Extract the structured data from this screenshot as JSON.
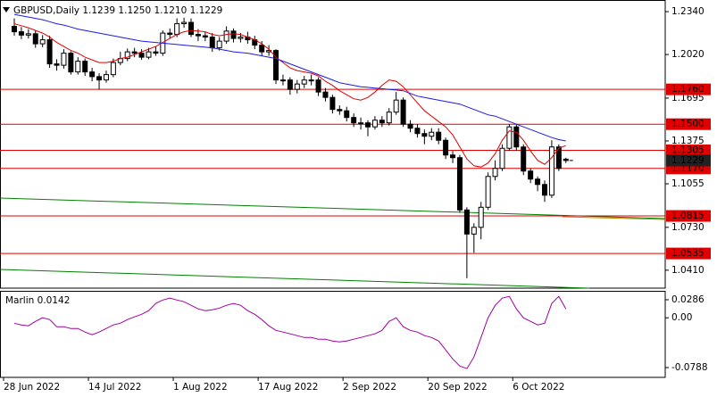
{
  "chart_data": [
    {
      "type": "candlestick",
      "title": "GBPUSD,Daily  1.1239 1.1250 1.1210 1.1229",
      "categories": [
        "28 Jun 2022",
        null,
        null,
        null,
        null,
        null,
        null,
        null,
        null,
        null,
        null,
        null,
        "14 Jul 2022",
        null,
        null,
        null,
        null,
        null,
        null,
        null,
        null,
        null,
        null,
        null,
        "1 Aug 2022",
        null,
        null,
        null,
        null,
        null,
        null,
        null,
        null,
        null,
        null,
        null,
        "17 Aug 2022",
        null,
        null,
        null,
        null,
        null,
        null,
        null,
        null,
        null,
        null,
        null,
        "2 Sep 2022",
        null,
        null,
        null,
        null,
        null,
        null,
        null,
        null,
        null,
        null,
        null,
        "20 Sep 2022",
        null,
        null,
        null,
        null,
        null,
        null,
        null,
        null,
        null,
        null,
        null,
        "6 Oct 2022",
        null,
        null,
        null,
        null,
        null,
        null
      ],
      "open": [
        1.223,
        1.219,
        1.2165,
        1.2175,
        1.21,
        1.213,
        1.195,
        1.194,
        1.203,
        1.189,
        1.197,
        1.189,
        1.1855,
        1.183,
        1.187,
        1.196,
        1.199,
        1.204,
        1.203,
        1.2,
        1.204,
        1.203,
        1.218,
        1.217,
        1.225,
        1.226,
        1.217,
        1.216,
        1.215,
        1.207,
        1.212,
        1.2195,
        1.214,
        1.215,
        1.213,
        1.209,
        1.204,
        1.205,
        1.183,
        1.183,
        1.176,
        1.18,
        1.183,
        1.183,
        1.174,
        1.17,
        1.161,
        1.16,
        1.155,
        1.151,
        1.151,
        1.148,
        1.153,
        1.151,
        1.159,
        1.168,
        1.15,
        1.147,
        1.143,
        1.141,
        1.144,
        1.138,
        1.127,
        1.125,
        1.086,
        1.068,
        1.073,
        1.088,
        1.111,
        1.117,
        1.132,
        1.148,
        1.133,
        1.115,
        1.109,
        1.105,
        1.097,
        1.133,
        1.1239
      ],
      "high": [
        1.229,
        1.2225,
        1.221,
        1.22,
        1.2165,
        1.216,
        1.1985,
        1.206,
        1.2045,
        1.2,
        1.199,
        1.192,
        1.188,
        1.19,
        1.199,
        1.204,
        1.2065,
        1.207,
        1.206,
        1.207,
        1.208,
        1.22,
        1.2215,
        1.229,
        1.2295,
        1.229,
        1.221,
        1.219,
        1.218,
        1.215,
        1.223,
        1.2215,
        1.218,
        1.219,
        1.216,
        1.212,
        1.209,
        1.206,
        1.187,
        1.185,
        1.183,
        1.186,
        1.187,
        1.185,
        1.177,
        1.172,
        1.164,
        1.163,
        1.158,
        1.155,
        1.153,
        1.156,
        1.156,
        1.162,
        1.174,
        1.17,
        1.153,
        1.15,
        1.146,
        1.147,
        1.147,
        1.14,
        1.13,
        1.127,
        1.088,
        1.076,
        1.092,
        1.114,
        1.123,
        1.135,
        1.15,
        1.15,
        1.135,
        1.117,
        1.111,
        1.108,
        1.138,
        1.135,
        1.125
      ],
      "low": [
        1.216,
        1.2135,
        1.214,
        1.207,
        1.2075,
        1.192,
        1.19,
        1.1915,
        1.187,
        1.187,
        1.186,
        1.182,
        1.176,
        1.181,
        1.185,
        1.194,
        1.197,
        1.2,
        1.198,
        1.1985,
        1.201,
        1.201,
        1.214,
        1.215,
        1.222,
        1.215,
        1.212,
        1.212,
        1.204,
        1.205,
        1.21,
        1.211,
        1.211,
        1.21,
        1.206,
        1.201,
        1.201,
        1.18,
        1.179,
        1.172,
        1.173,
        1.177,
        1.179,
        1.171,
        1.167,
        1.158,
        1.157,
        1.152,
        1.148,
        1.146,
        1.141,
        1.146,
        1.148,
        1.149,
        1.157,
        1.148,
        1.144,
        1.14,
        1.135,
        1.138,
        1.135,
        1.124,
        1.121,
        1.084,
        1.035,
        1.054,
        1.064,
        1.086,
        1.108,
        1.115,
        1.13,
        1.13,
        1.112,
        1.106,
        1.1,
        1.092,
        1.095,
        1.115,
        1.121
      ],
      "close": [
        1.219,
        1.2165,
        1.2175,
        1.21,
        1.213,
        1.195,
        1.194,
        1.203,
        1.189,
        1.197,
        1.189,
        1.1855,
        1.183,
        1.187,
        1.196,
        1.199,
        1.204,
        1.203,
        1.2,
        1.204,
        1.203,
        1.218,
        1.217,
        1.225,
        1.226,
        1.217,
        1.216,
        1.215,
        1.207,
        1.212,
        1.2195,
        1.214,
        1.215,
        1.213,
        1.209,
        1.204,
        1.205,
        1.183,
        1.183,
        1.176,
        1.18,
        1.183,
        1.183,
        1.174,
        1.17,
        1.161,
        1.16,
        1.155,
        1.151,
        1.151,
        1.148,
        1.153,
        1.151,
        1.159,
        1.168,
        1.15,
        1.147,
        1.143,
        1.141,
        1.144,
        1.138,
        1.127,
        1.125,
        1.086,
        1.068,
        1.073,
        1.088,
        1.111,
        1.117,
        1.132,
        1.148,
        1.133,
        1.115,
        1.109,
        1.105,
        1.097,
        1.133,
        1.117,
        1.1229
      ],
      "series": [
        {
          "color": "#e00000",
          "values": [
            1.225,
            1.2235,
            1.222,
            1.22,
            1.218,
            1.215,
            1.211,
            1.208,
            1.205,
            1.203,
            1.2,
            1.198,
            1.196,
            1.196,
            1.197,
            1.199,
            1.2,
            1.202,
            1.204,
            1.206,
            1.208,
            1.211,
            1.214,
            1.217,
            1.219,
            1.22,
            1.2195,
            1.219,
            1.217,
            1.216,
            1.217,
            1.2175,
            1.217,
            1.215,
            1.213,
            1.21,
            1.206,
            1.2,
            1.196,
            1.192,
            1.19,
            1.189,
            1.188,
            1.186,
            1.182,
            1.179,
            1.175,
            1.172,
            1.169,
            1.168,
            1.17,
            1.174,
            1.179,
            1.183,
            1.182,
            1.178,
            1.172,
            1.166,
            1.16,
            1.156,
            1.152,
            1.148,
            1.142,
            1.133,
            1.124,
            1.119,
            1.118,
            1.121,
            1.128,
            1.138,
            1.145,
            1.144,
            1.138,
            1.13,
            1.123,
            1.12,
            1.125,
            1.132,
            1.134
          ]
        },
        {
          "color": "#1a1ae6",
          "values": [
            1.232,
            1.231,
            1.23,
            1.229,
            1.228,
            1.2265,
            1.225,
            1.224,
            1.2225,
            1.221,
            1.22,
            1.219,
            1.218,
            1.217,
            1.216,
            1.215,
            1.214,
            1.213,
            1.212,
            1.2115,
            1.211,
            1.2105,
            1.21,
            1.2095,
            1.209,
            1.2085,
            1.208,
            1.2075,
            1.207,
            1.206,
            1.205,
            1.204,
            1.2035,
            1.203,
            1.202,
            1.201,
            1.2,
            1.199,
            1.197,
            1.195,
            1.193,
            1.191,
            1.189,
            1.187,
            1.185,
            1.183,
            1.181,
            1.18,
            1.179,
            1.178,
            1.1775,
            1.177,
            1.1765,
            1.176,
            1.1755,
            1.175,
            1.173,
            1.171,
            1.17,
            1.169,
            1.168,
            1.167,
            1.166,
            1.165,
            1.163,
            1.161,
            1.159,
            1.157,
            1.156,
            1.154,
            1.152,
            1.15,
            1.148,
            1.146,
            1.144,
            1.142,
            1.14,
            1.1385,
            1.1375
          ]
        }
      ],
      "levels": [
        {
          "value": 1.176,
          "label": "1.1760"
        },
        {
          "value": 1.15,
          "label": "1.1500"
        },
        1.1305,
        {
          "value": 1.117,
          "label": "1.1170"
        },
        1.0815,
        1.0535
      ],
      "level_color": "#e00000",
      "current_price": 1.1229,
      "ylim": [
        1.0276,
        1.2427
      ],
      "yticks": [
        {
          "value": 1.234,
          "label": "1.2340"
        },
        {
          "value": 1.202,
          "label": "1.2020"
        },
        1.1695,
        1.1375,
        1.1055,
        {
          "value": 1.073,
          "label": "1.0730"
        },
        {
          "value": 1.041,
          "label": "1.0410"
        }
      ]
    },
    {
      "type": "line",
      "label": "Marlin 0.0142",
      "color": "#a000a0",
      "values": [
        -0.0085,
        -0.0113,
        -0.0127,
        -0.0056,
        0,
        -0.0028,
        -0.0141,
        -0.0141,
        -0.0169,
        -0.0169,
        -0.0226,
        -0.0268,
        -0.0226,
        -0.0169,
        -0.0113,
        -0.0085,
        -0.0028,
        0.0014,
        0.0056,
        0.0113,
        0.0226,
        0.0282,
        0.0311,
        0.0282,
        0.0254,
        0.0198,
        0.0141,
        0.0113,
        0.0127,
        0.0155,
        0.0198,
        0.0226,
        0.0198,
        0.0113,
        0.0056,
        -0.0028,
        -0.0127,
        -0.0198,
        -0.0226,
        -0.0254,
        -0.0282,
        -0.0311,
        -0.0311,
        -0.0339,
        -0.0339,
        -0.0367,
        -0.0381,
        -0.0367,
        -0.0339,
        -0.0311,
        -0.0282,
        -0.0254,
        -0.0198,
        -0.0056,
        0,
        -0.0141,
        -0.0198,
        -0.0226,
        -0.0282,
        -0.0311,
        -0.0367,
        -0.0508,
        -0.065,
        -0.0763,
        -0.0805,
        -0.0621,
        -0.0311,
        0,
        0.0198,
        0.0311,
        0.0339,
        0.0141,
        0,
        -0.0056,
        -0.0113,
        -0.0085,
        0.0226,
        0.0339,
        0.0142
      ],
      "ylim": [
        -0.0943,
        0.0427
      ],
      "yticks": [
        0.0286,
        {
          "value": 0,
          "label": "0.00"
        },
        -0.0788
      ]
    }
  ]
}
